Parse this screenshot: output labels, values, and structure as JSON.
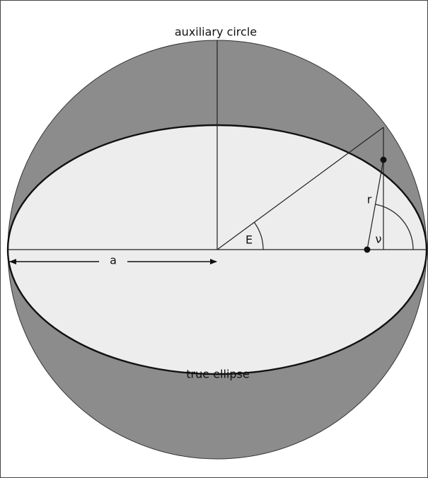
{
  "labels": {
    "circle": "auxiliary circle",
    "ellipse": "true ellipse",
    "semi_major": "a",
    "eccentric_anomaly": "E",
    "radius": "r",
    "true_anomaly": "ν"
  }
}
